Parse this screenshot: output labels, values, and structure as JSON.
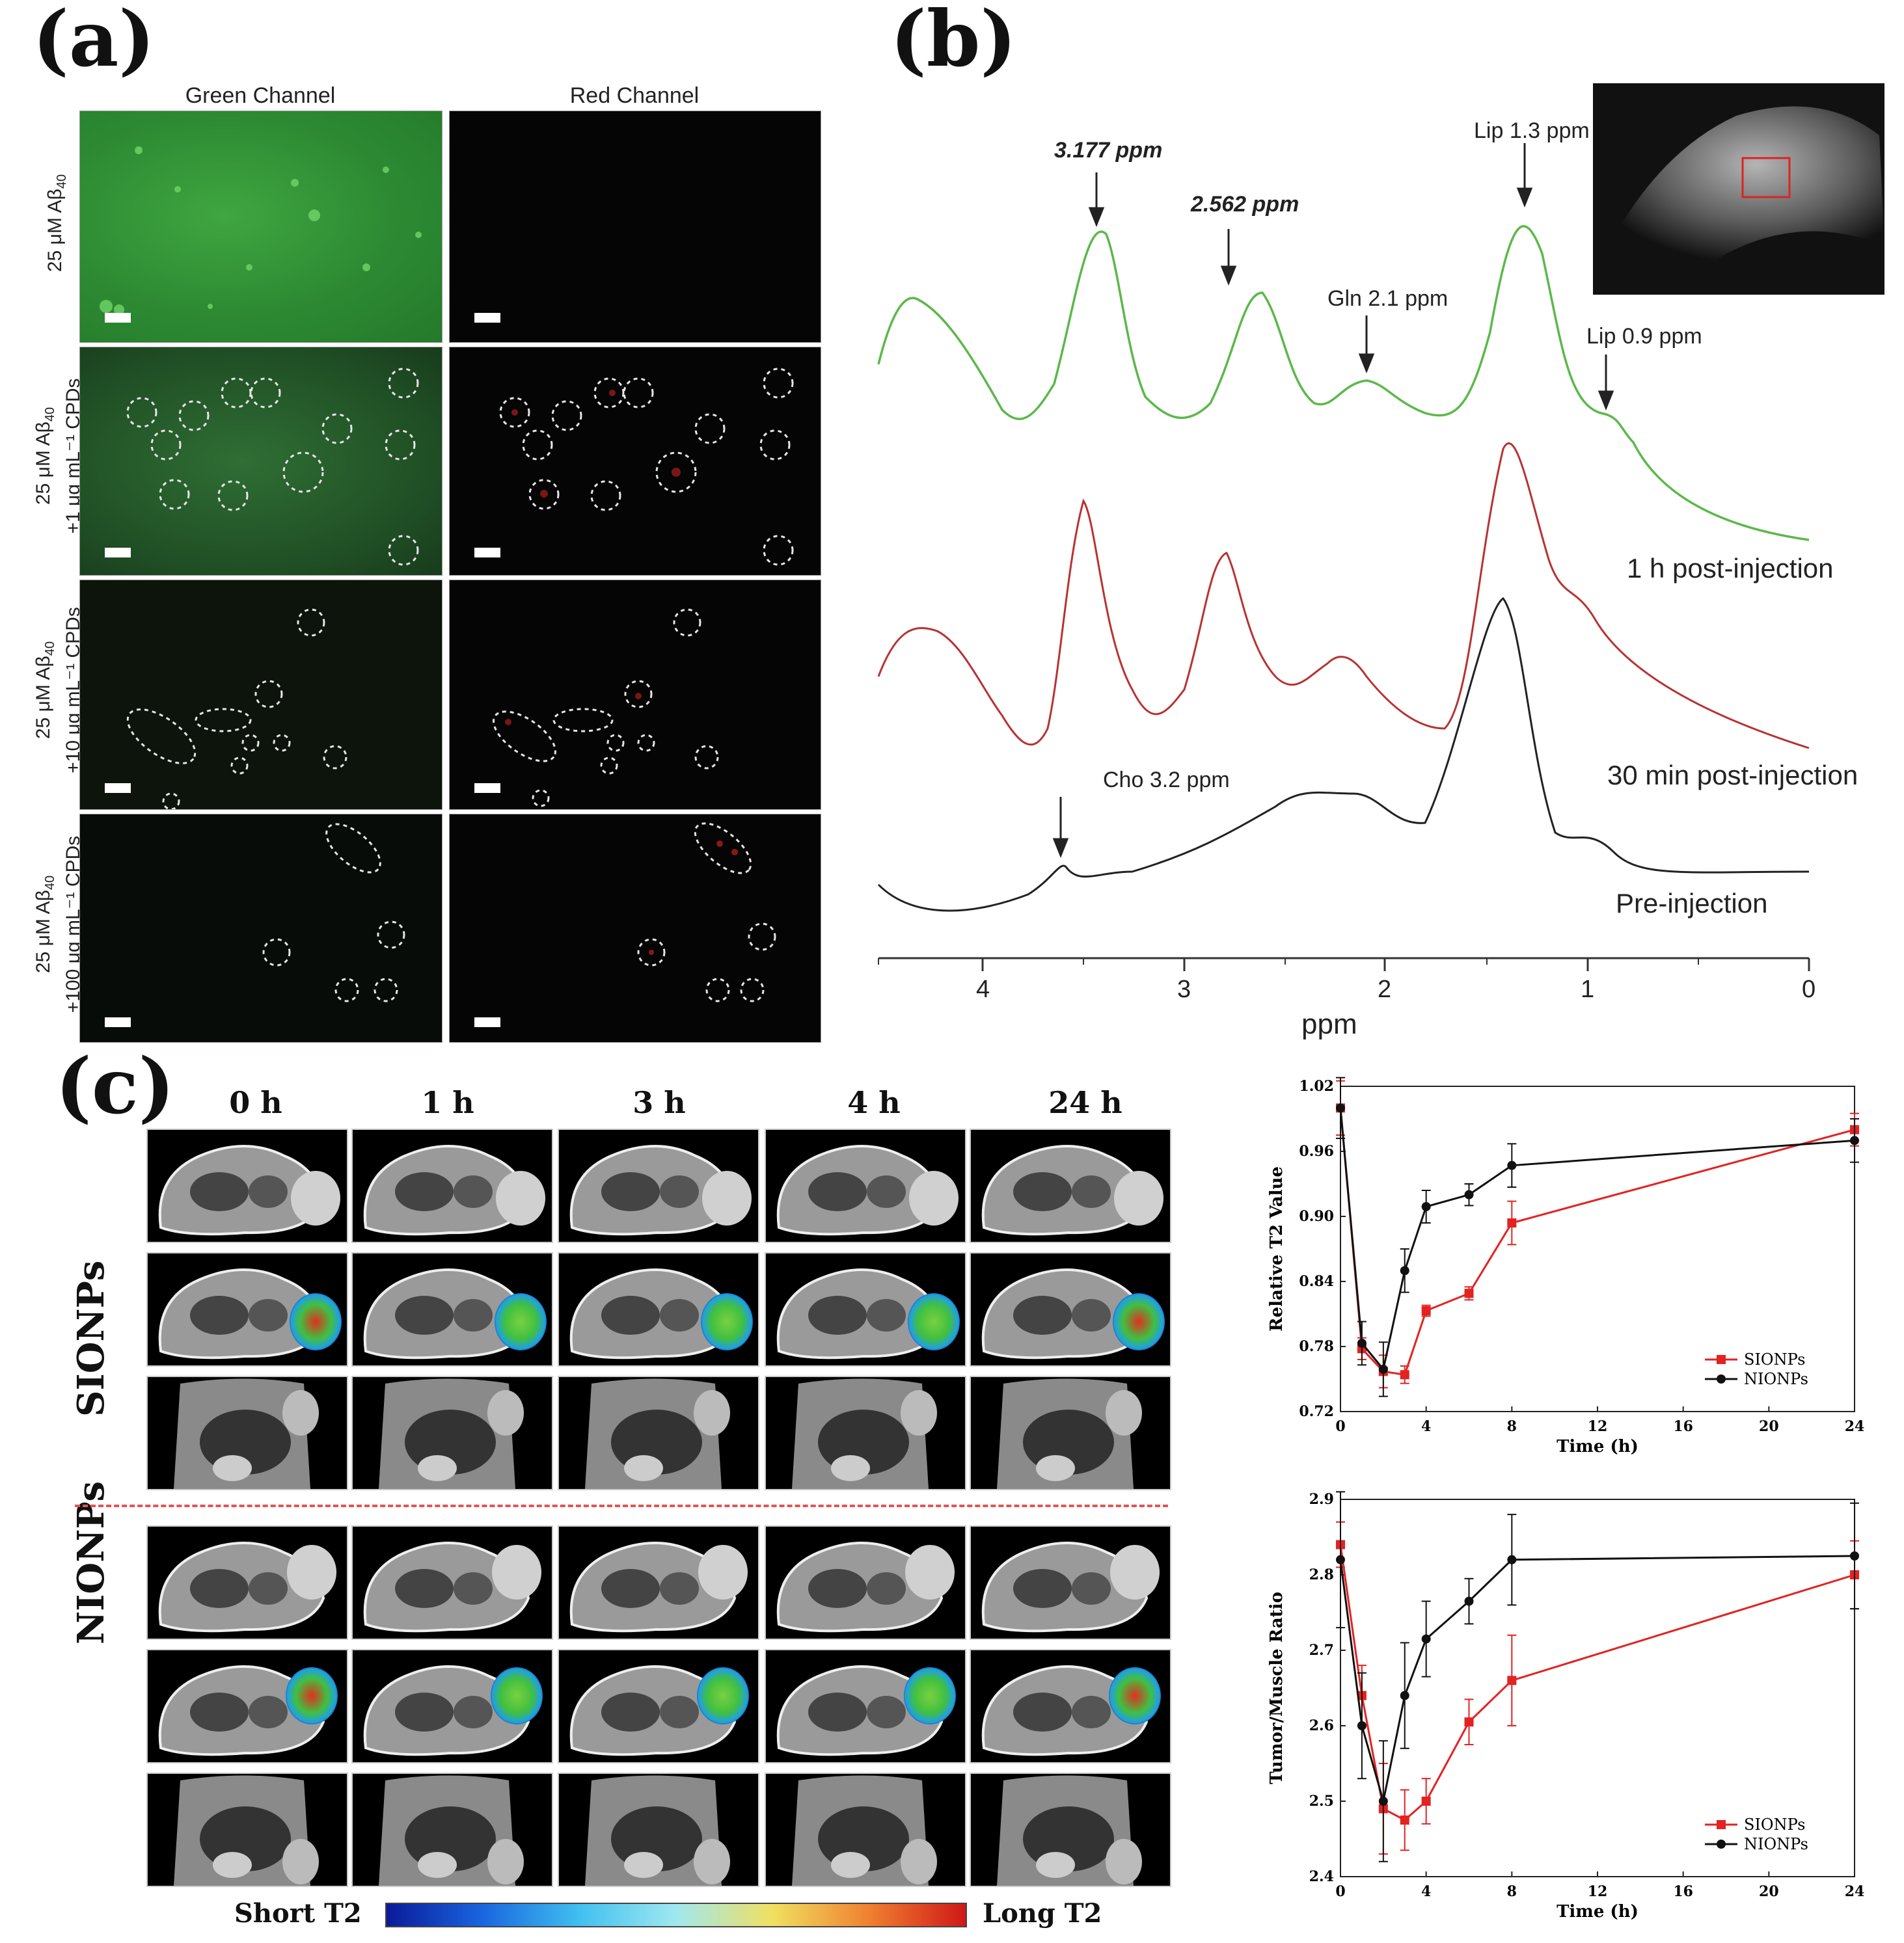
{
  "panels": {
    "a": "(a)",
    "b": "(b)",
    "c": "(c)"
  },
  "panel_a": {
    "columns": [
      "Green Channel",
      "Red Channel"
    ],
    "rows": [
      {
        "line1": "25 μM Aβ",
        "sub": "40",
        "line2": ""
      },
      {
        "line1": "25 μM Aβ",
        "sub": "40",
        "line2": "+1 μg mL⁻¹ CPDs"
      },
      {
        "line1": "25 μM Aβ",
        "sub": "40",
        "line2": "+10 μg mL⁻¹ CPDs"
      },
      {
        "line1": "25 μM Aβ",
        "sub": "40",
        "line2": "+100 μg mL⁻¹ CPDs"
      }
    ]
  },
  "panel_b": {
    "annotations": {
      "p3177": "3.177 ppm",
      "p2562": "2.562 ppm",
      "gln": "Gln 2.1 ppm",
      "lip13": "Lip 1.3 ppm",
      "lip09": "Lip 0.9 ppm",
      "cho": "Cho 3.2 ppm"
    },
    "trace_labels": [
      "1 h post-injection",
      "30 min post-injection",
      "Pre-injection"
    ],
    "xlabel": "ppm",
    "xticks": [
      "4",
      "3",
      "2",
      "1",
      "0"
    ]
  },
  "panel_c": {
    "times": [
      "0 h",
      "1 h",
      "3 h",
      "4 h",
      "24 h"
    ],
    "groups": [
      "SIONPs",
      "NIONPs"
    ],
    "colorbar": {
      "left": "Short T2",
      "right": "Long T2"
    }
  },
  "chart_data": [
    {
      "type": "line",
      "title": "",
      "xlabel": "Time (h)",
      "ylabel": "Relative T2 Value",
      "xlim": [
        0,
        24
      ],
      "ylim": [
        0.72,
        1.02
      ],
      "xticks": [
        0,
        4,
        8,
        12,
        16,
        20,
        24
      ],
      "yticks": [
        0.72,
        0.78,
        0.84,
        0.9,
        0.96,
        1.02
      ],
      "legend": "bottom-right",
      "series": [
        {
          "name": "SIONPs",
          "color": "#e32222",
          "x": [
            0,
            1,
            2,
            3,
            4,
            6,
            8,
            24
          ],
          "y": [
            1.0,
            0.778,
            0.757,
            0.754,
            0.813,
            0.829,
            0.894,
            0.98
          ],
          "err": [
            0.025,
            0.01,
            0.015,
            0.008,
            0.005,
            0.006,
            0.02,
            0.015
          ]
        },
        {
          "name": "NIONPs",
          "color": "#111111",
          "x": [
            0,
            1,
            2,
            3,
            4,
            6,
            8,
            24
          ],
          "y": [
            1.0,
            0.783,
            0.759,
            0.85,
            0.909,
            0.92,
            0.947,
            0.97
          ],
          "err": [
            0.028,
            0.02,
            0.025,
            0.02,
            0.015,
            0.01,
            0.02,
            0.02
          ]
        }
      ]
    },
    {
      "type": "line",
      "title": "",
      "xlabel": "Time (h)",
      "ylabel": "Tumor/Muscle Ratio",
      "xlim": [
        0,
        24
      ],
      "ylim": [
        2.4,
        2.9
      ],
      "xticks": [
        0,
        4,
        8,
        12,
        16,
        20,
        24
      ],
      "yticks": [
        2.4,
        2.5,
        2.6,
        2.7,
        2.8,
        2.9
      ],
      "legend": "bottom-right",
      "series": [
        {
          "name": "SIONPs",
          "color": "#e32222",
          "x": [
            0,
            1,
            2,
            3,
            4,
            6,
            8,
            24
          ],
          "y": [
            2.84,
            2.64,
            2.49,
            2.475,
            2.5,
            2.605,
            2.66,
            2.8
          ],
          "err": [
            0.03,
            0.04,
            0.06,
            0.04,
            0.03,
            0.03,
            0.06,
            0.045
          ]
        },
        {
          "name": "NIONPs",
          "color": "#111111",
          "x": [
            0,
            1,
            2,
            3,
            4,
            6,
            8,
            24
          ],
          "y": [
            2.82,
            2.6,
            2.5,
            2.64,
            2.715,
            2.765,
            2.82,
            2.825
          ],
          "err": [
            0.09,
            0.07,
            0.08,
            0.07,
            0.05,
            0.03,
            0.06,
            0.07
          ]
        }
      ]
    }
  ]
}
